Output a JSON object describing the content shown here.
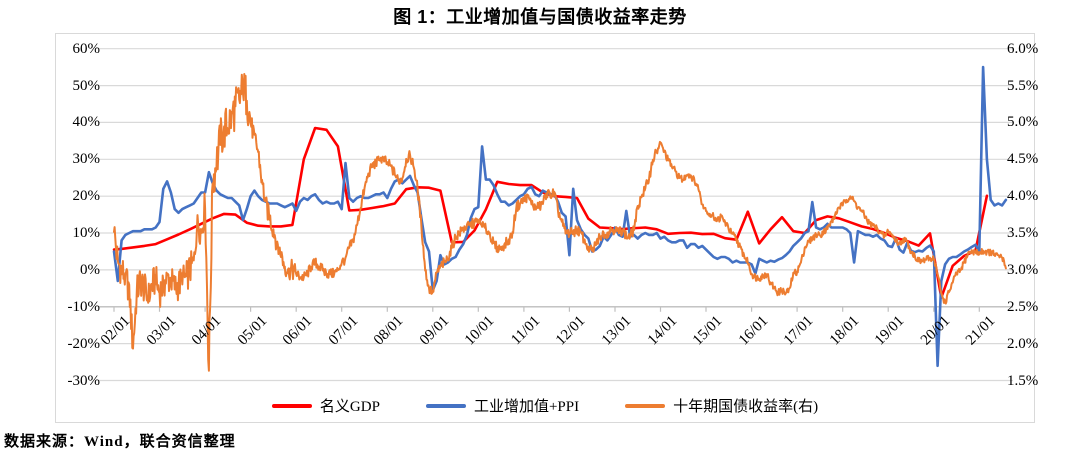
{
  "title": "图 1：工业增加值与国债收益率走势",
  "source_note": "数据来源：Wind，联合资信整理",
  "chart_data": {
    "type": "line",
    "title": "图 1：工业增加值与国债收益率走势",
    "x_axis": {
      "start": "2002-01",
      "end": "2021-08",
      "tick_labels": [
        "02/01",
        "03/01",
        "04/01",
        "05/01",
        "06/01",
        "07/01",
        "08/01",
        "09/01",
        "10/01",
        "11/01",
        "12/01",
        "13/01",
        "14/01",
        "15/01",
        "16/01",
        "17/01",
        "18/01",
        "19/01",
        "20/01",
        "21/01"
      ],
      "label_every_months": 12
    },
    "left_axis": {
      "min": -30,
      "max": 60,
      "step": 10,
      "unit": "%",
      "labels": [
        "60%",
        "50%",
        "40%",
        "30%",
        "20%",
        "10%",
        "0%",
        "-10%",
        "-20%",
        "-30%"
      ],
      "axis_cross_value": -10
    },
    "right_axis": {
      "min": 1.5,
      "max": 6.0,
      "step": 0.5,
      "unit": "%",
      "labels": [
        "6.0%",
        "5.5%",
        "5.0%",
        "4.5%",
        "4.0%",
        "3.5%",
        "3.0%",
        "2.5%",
        "2.0%",
        "1.5%"
      ]
    },
    "grid": "horizontal",
    "legend_position": "bottom",
    "series": [
      {
        "id": "gdp",
        "name": "名义GDP",
        "color": "#FF0000",
        "axis": "left",
        "frequency": "quarterly",
        "note": "first value at 2002-01, then quarter-end months (2002-03, 2002-06, ... 2021-03)",
        "values": [
          5.5,
          5.7,
          6.1,
          6.5,
          7.0,
          8.3,
          9.6,
          11.0,
          12.5,
          14.0,
          15.2,
          15.0,
          12.8,
          12.0,
          11.8,
          11.8,
          12.2,
          30.0,
          38.5,
          38.0,
          33.5,
          16.1,
          16.3,
          16.8,
          17.3,
          18.0,
          21.9,
          22.4,
          22.3,
          21.5,
          7.5,
          7.6,
          10.7,
          16.4,
          23.9,
          23.3,
          23.0,
          23.0,
          21.0,
          20.0,
          19.8,
          19.5,
          13.9,
          11.5,
          11.3,
          11.1,
          11.3,
          11.5,
          11.0,
          9.8,
          10.0,
          10.1,
          9.7,
          9.8,
          8.6,
          8.2,
          15.8,
          7.2,
          11.0,
          14.3,
          10.5,
          10.0,
          13.5,
          14.5,
          14.0,
          12.9,
          11.8,
          11.1,
          10.0,
          8.7,
          7.8,
          6.6,
          9.9,
          -7.5,
          1.1,
          3.8,
          5.2,
          20.1
        ]
      },
      {
        "id": "iva-ppi",
        "name": "工业增加值+PPI",
        "color": "#4472C4",
        "axis": "left",
        "frequency": "monthly",
        "values": [
          5,
          -3,
          8,
          9.5,
          10,
          10.5,
          10.5,
          10.5,
          11,
          11,
          11,
          11.5,
          13,
          22,
          24,
          21,
          16.5,
          15.5,
          16.5,
          17,
          17.5,
          18,
          19.5,
          21,
          21,
          26.5,
          23.5,
          21.5,
          20.5,
          20,
          19.5,
          19.5,
          18.5,
          17.5,
          13.5,
          16.5,
          20,
          21.5,
          20,
          19,
          18.5,
          18,
          18,
          18,
          17.5,
          17,
          17.5,
          18,
          16,
          18.5,
          19.5,
          19,
          20,
          20.5,
          19,
          18,
          18.5,
          18,
          18,
          18.5,
          16.5,
          29,
          19.5,
          18.5,
          19.5,
          20,
          19.5,
          19.5,
          20,
          20.5,
          20.5,
          21,
          19.5,
          22,
          24,
          24.5,
          23.5,
          24.5,
          25.5,
          23,
          21,
          14,
          7.5,
          5,
          -5.5,
          -3,
          4,
          1.5,
          2,
          3,
          3.5,
          5.5,
          7,
          9.5,
          14,
          16.5,
          17,
          33.5,
          24.5,
          24.5,
          23,
          20.5,
          18.5,
          18.5,
          17.5,
          18,
          19,
          20,
          20.5,
          22,
          22.5,
          20.5,
          20,
          21.5,
          21,
          20.5,
          20.5,
          18.5,
          15.5,
          14.5,
          4,
          22,
          13.5,
          11,
          9.5,
          8.5,
          5,
          5.5,
          6.5,
          9,
          8,
          9.5,
          11.5,
          9.5,
          9,
          16,
          9,
          9.5,
          8.5,
          9.5,
          10,
          9.5,
          9.5,
          10,
          8.5,
          9,
          8,
          7.5,
          7.5,
          8,
          8,
          6,
          7,
          7,
          6,
          6.5,
          5.5,
          4.5,
          3.5,
          3,
          3.5,
          3.5,
          3,
          2,
          2.5,
          2,
          2,
          2,
          1.5,
          -1,
          3,
          2.5,
          2,
          2.5,
          2.2,
          2.8,
          3.2,
          4,
          5,
          6.5,
          7.5,
          8.5,
          10,
          10.5,
          18.4,
          11.5,
          11,
          11.5,
          12.5,
          11.5,
          11.5,
          11.5,
          11.5,
          11,
          10,
          2,
          10.5,
          10,
          9.5,
          9.5,
          9,
          9.5,
          8.5,
          8,
          6.5,
          6.2,
          8.5,
          5.5,
          4.7,
          7.3,
          5.2,
          4.8,
          5.2,
          5,
          5.9,
          6.6,
          5,
          -26,
          -3,
          1.5,
          3,
          3.5,
          3.5,
          4.2,
          5,
          5.5,
          6.2,
          6.8,
          5,
          55,
          30,
          19,
          17.5,
          18,
          17.5,
          19
        ]
      },
      {
        "id": "bond-yield",
        "name": "十年期国债收益率(右)",
        "color": "#ED7D31",
        "axis": "right",
        "frequency": "monthly",
        "noise_amplitude_schedule": [
          {
            "until_month": 24,
            "amp": 0.22
          },
          {
            "until_month": 36,
            "amp": 0.3
          },
          {
            "until_month": 48,
            "amp": 0.14
          },
          {
            "until_month": 144,
            "amp": 0.07
          },
          {
            "until_month": 180,
            "amp": 0.05
          },
          {
            "until_month": 999,
            "amp": 0.045
          }
        ],
        "values": [
          3.55,
          3.1,
          3.0,
          2.9,
          2.75,
          1.95,
          2.7,
          2.85,
          2.75,
          2.6,
          2.8,
          2.85,
          2.7,
          2.8,
          2.9,
          2.85,
          2.75,
          2.8,
          2.85,
          2.9,
          3.0,
          3.1,
          3.7,
          3.5,
          3.9,
          1.65,
          4.2,
          4.45,
          4.75,
          4.9,
          4.95,
          5.1,
          5.2,
          5.3,
          5.45,
          5.35,
          5.0,
          4.8,
          4.6,
          4.2,
          3.9,
          3.7,
          3.55,
          3.35,
          3.2,
          3.05,
          3.0,
          3.0,
          2.95,
          2.9,
          2.9,
          2.95,
          3.05,
          3.1,
          3.05,
          3.0,
          2.95,
          2.95,
          2.95,
          3.0,
          3.1,
          3.15,
          3.3,
          3.4,
          3.6,
          3.85,
          4.1,
          4.3,
          4.4,
          4.45,
          4.5,
          4.5,
          4.45,
          4.4,
          4.3,
          4.2,
          4.25,
          4.5,
          4.55,
          4.4,
          4.1,
          3.6,
          3.0,
          2.75,
          2.7,
          2.95,
          3.05,
          3.1,
          3.15,
          3.3,
          3.45,
          3.5,
          3.55,
          3.6,
          3.6,
          3.65,
          3.65,
          3.6,
          3.55,
          3.5,
          3.35,
          3.3,
          3.3,
          3.35,
          3.4,
          3.5,
          3.85,
          3.9,
          3.95,
          4.0,
          3.9,
          3.85,
          3.85,
          3.9,
          4.05,
          4.0,
          4.05,
          3.8,
          3.65,
          3.5,
          3.5,
          3.5,
          3.55,
          3.5,
          3.4,
          3.3,
          3.25,
          3.35,
          3.45,
          3.5,
          3.5,
          3.55,
          3.55,
          3.5,
          3.55,
          3.45,
          3.45,
          3.55,
          3.85,
          4.0,
          4.1,
          4.25,
          4.5,
          4.6,
          4.72,
          4.6,
          4.49,
          4.4,
          4.33,
          4.25,
          4.22,
          4.3,
          4.28,
          4.2,
          4.1,
          3.9,
          3.81,
          3.75,
          3.72,
          3.68,
          3.72,
          3.65,
          3.55,
          3.48,
          3.42,
          3.3,
          3.2,
          3.1,
          2.95,
          2.9,
          2.89,
          2.92,
          2.95,
          2.82,
          2.76,
          2.69,
          2.72,
          2.68,
          2.74,
          2.95,
          2.98,
          3.1,
          3.3,
          3.38,
          3.42,
          3.48,
          3.47,
          3.52,
          3.56,
          3.65,
          3.74,
          3.85,
          3.88,
          3.95,
          4.0,
          3.93,
          3.85,
          3.8,
          3.72,
          3.63,
          3.6,
          3.57,
          3.5,
          3.45,
          3.53,
          3.47,
          3.4,
          3.35,
          3.42,
          3.38,
          3.25,
          3.19,
          3.12,
          3.12,
          3.14,
          3.16,
          3.16,
          2.94,
          2.68,
          2.55,
          2.7,
          2.83,
          2.95,
          2.99,
          3.1,
          3.22,
          3.26,
          3.24,
          3.22,
          3.26,
          3.24,
          3.24,
          3.21,
          3.19,
          3.17,
          3.03
        ]
      }
    ]
  }
}
